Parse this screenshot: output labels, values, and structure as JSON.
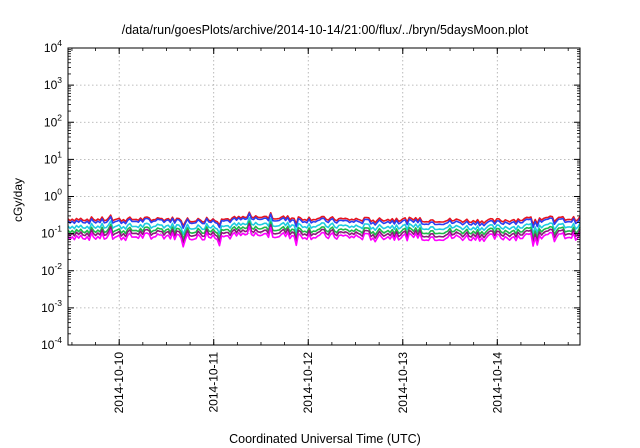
{
  "chart_data": {
    "type": "line",
    "title": "/data/run/goesPlots/archive/2014-10-14/21:00/flux/../bryn/5daysMoon.plot",
    "xlabel": "Coordinated Universal Time (UTC)",
    "ylabel": "cGy/day",
    "yscale": "log",
    "ylim": [
      0.0001,
      10000
    ],
    "xlim": [
      "2014-10-09 11:00",
      "2014-10-14 21:00"
    ],
    "grid": true,
    "x_ticks": [
      "2014-10-10",
      "2014-10-11",
      "2014-10-12",
      "2014-10-13",
      "2014-10-14"
    ],
    "y_ticks": [
      {
        "value": 0.0001,
        "base": "10",
        "exp": "-4"
      },
      {
        "value": 0.001,
        "base": "10",
        "exp": "-3"
      },
      {
        "value": 0.01,
        "base": "10",
        "exp": "-2"
      },
      {
        "value": 0.1,
        "base": "10",
        "exp": "-1"
      },
      {
        "value": 1,
        "base": "10",
        "exp": "0"
      },
      {
        "value": 10,
        "base": "10",
        "exp": "1"
      },
      {
        "value": 100,
        "base": "10",
        "exp": "2"
      },
      {
        "value": 1000,
        "base": "10",
        "exp": "3"
      },
      {
        "value": 10000,
        "base": "10",
        "exp": "4"
      }
    ],
    "x": [
      "2014-10-09 11:00",
      "2014-10-09 23:00",
      "2014-10-10 11:00",
      "2014-10-10 23:00",
      "2014-10-11 11:00",
      "2014-10-11 23:00",
      "2014-10-12 11:00",
      "2014-10-12 23:00",
      "2014-10-13 11:00",
      "2014-10-13 23:00",
      "2014-10-14 11:00",
      "2014-10-14 21:00"
    ],
    "series": [
      {
        "color": "#e8141e",
        "values": [
          0.25,
          0.24,
          0.25,
          0.23,
          0.28,
          0.26,
          0.24,
          0.24,
          0.23,
          0.22,
          0.26,
          0.25
        ]
      },
      {
        "color": "#2b3ff0",
        "values": [
          0.22,
          0.21,
          0.23,
          0.21,
          0.25,
          0.23,
          0.21,
          0.21,
          0.2,
          0.19,
          0.23,
          0.22
        ]
      },
      {
        "color": "#1ecbe0",
        "values": [
          0.16,
          0.155,
          0.165,
          0.15,
          0.18,
          0.17,
          0.155,
          0.155,
          0.15,
          0.145,
          0.165,
          0.16
        ]
      },
      {
        "color": "#1fb84a",
        "values": [
          0.125,
          0.12,
          0.13,
          0.12,
          0.14,
          0.13,
          0.12,
          0.12,
          0.118,
          0.115,
          0.13,
          0.125
        ]
      },
      {
        "color": "#8a1a7a",
        "values": [
          0.105,
          0.1,
          0.11,
          0.1,
          0.115,
          0.11,
          0.1,
          0.1,
          0.098,
          0.096,
          0.108,
          0.105
        ]
      },
      {
        "color": "#ff00ff",
        "values": [
          0.085,
          0.08,
          0.088,
          0.082,
          0.093,
          0.088,
          0.082,
          0.082,
          0.08,
          0.078,
          0.087,
          0.085
        ]
      }
    ]
  }
}
